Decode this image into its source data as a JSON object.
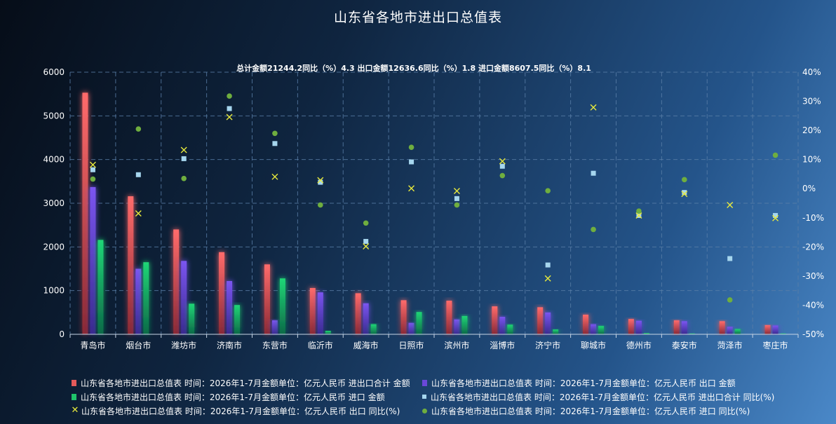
{
  "title": "山东省各地市进出口总值表",
  "summary": "总计金额21244.2同比（%）4.3 出口金额12636.6同比（%）1.8 进口金额8607.5同比（%）8.1",
  "legend": [
    {
      "label": "山东省各地市进出口总值表 时间：2026年1-7月金额单位：亿元人民币 进出口合计 金额",
      "marker": "bar",
      "color": "#e35a5a"
    },
    {
      "label": "山东省各地市进出口总值表 时间：2026年1-7月金额单位：亿元人民币 出口 金额",
      "marker": "bar",
      "color": "#6a48d8"
    },
    {
      "label": "山东省各地市进出口总值表 时间：2026年1-7月金额单位：亿元人民币 进口 金额",
      "marker": "bar",
      "color": "#1fc46a"
    },
    {
      "label": "山东省各地市进出口总值表 时间：2026年1-7月金额单位：亿元人民币 进出口合计 同比(%)",
      "marker": "square",
      "color": "#a6d6ee"
    },
    {
      "label": "山东省各地市进出口总值表 时间：2026年1-7月金额单位：亿元人民币 出口 同比(%)",
      "marker": "x",
      "color": "#e8ea3c"
    },
    {
      "label": "山东省各地市进出口总值表 时间：2026年1-7月金额单位：亿元人民币 进口 同比(%)",
      "marker": "dot",
      "color": "#6fae3f"
    }
  ],
  "chart_data": {
    "type": "bar",
    "categories": [
      "青岛市",
      "烟台市",
      "潍坊市",
      "济南市",
      "东营市",
      "临沂市",
      "威海市",
      "日照市",
      "滨州市",
      "淄博市",
      "济宁市",
      "聊城市",
      "德州市",
      "泰安市",
      "菏泽市",
      "枣庄市"
    ],
    "bar_series": [
      {
        "color": "#e35a5a",
        "values": [
          5530,
          3160,
          2400,
          1880,
          1600,
          1060,
          940,
          780,
          770,
          640,
          620,
          450,
          350,
          320,
          300,
          210
        ]
      },
      {
        "color": "#6a48d8",
        "values": [
          3370,
          1500,
          1680,
          1220,
          320,
          960,
          710,
          260,
          340,
          400,
          500,
          230,
          310,
          300,
          170,
          200
        ]
      },
      {
        "color": "#1fc46a",
        "values": [
          2160,
          1650,
          700,
          670,
          1280,
          80,
          230,
          510,
          420,
          220,
          110,
          190,
          30,
          20,
          120,
          20
        ]
      }
    ],
    "point_series": [
      {
        "marker": "square",
        "color": "#a6d6ee",
        "values": [
          6.5,
          4.8,
          10.3,
          27.5,
          15.5,
          2.2,
          -18.1,
          9.2,
          -3.4,
          7.7,
          -26.2,
          5.3,
          -9.2,
          -1.3,
          -24,
          -9.2
        ]
      },
      {
        "marker": "x",
        "color": "#e8ea3c",
        "values": [
          8.2,
          -8.5,
          13.3,
          24.6,
          4.1,
          2.9,
          -19.8,
          0.1,
          -0.8,
          9.4,
          -30.8,
          27.9,
          -9.2,
          -1.8,
          -5.6,
          -10.1
        ]
      },
      {
        "marker": "dot",
        "color": "#6fae3f",
        "values": [
          3.3,
          20.5,
          3.5,
          31.8,
          19,
          -5.6,
          -11.8,
          14.2,
          -5.6,
          4.5,
          -0.7,
          -14,
          -7.7,
          3.1,
          -38.2,
          11.5
        ]
      }
    ],
    "y_left": {
      "min": 0,
      "max": 6000,
      "ticks": [
        0,
        1000,
        2000,
        3000,
        4000,
        5000,
        6000
      ]
    },
    "y_right": {
      "min": -50,
      "max": 40,
      "ticks": [
        "-50%",
        "-40%",
        "-30%",
        "-20%",
        "-10%",
        "0%",
        "10%",
        "20%",
        "30%",
        "40%"
      ]
    },
    "grid": true
  }
}
